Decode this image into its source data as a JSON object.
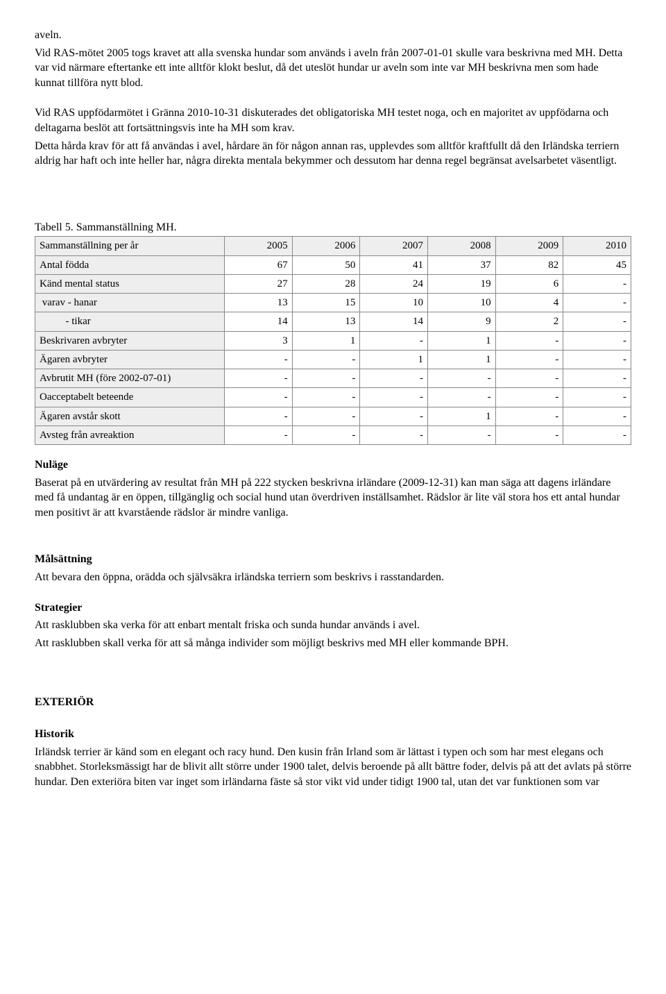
{
  "intro": {
    "p1_l1": "aveln.",
    "p1_l2": "Vid RAS-mötet 2005 togs kravet att alla svenska hundar som används i aveln från 2007-01-01 skulle vara beskrivna med MH. Detta var vid närmare eftertanke ett inte alltför klokt beslut, då det uteslöt hundar ur aveln som inte var MH beskrivna men som hade kunnat tillföra nytt blod.",
    "p2": "Vid RAS uppfödarmötet i Gränna 2010-10-31 diskuterades det obligatoriska MH testet noga, och en majoritet av uppfödarna och deltagarna beslöt att fortsättningsvis inte ha MH som krav.",
    "p3": "Detta hårda krav för att få användas i avel, hårdare än för någon annan ras, upplevdes som alltför kraftfullt då den Irländska terriern aldrig har haft och inte heller har, några direkta mentala bekymmer och dessutom har denna regel begränsat avelsarbetet väsentligt."
  },
  "table": {
    "title": "Tabell 5. Sammanställning MH.",
    "header_row_label": "Sammanställning per år",
    "years": [
      "2005",
      "2006",
      "2007",
      "2008",
      "2009",
      "2010"
    ],
    "rows": [
      {
        "label": "Antal födda",
        "cells": [
          "67",
          "50",
          "41",
          "37",
          "82",
          "45"
        ]
      },
      {
        "label": "Känd mental status",
        "cells": [
          "27",
          "28",
          "24",
          "19",
          "6",
          "-"
        ]
      },
      {
        "label": " varav - hanar",
        "cells": [
          "13",
          "15",
          "10",
          "10",
          "4",
          "-"
        ]
      },
      {
        "label": "          - tikar",
        "cells": [
          "14",
          "13",
          "14",
          "9",
          "2",
          "-"
        ]
      },
      {
        "label": "Beskrivaren avbryter",
        "cells": [
          "3",
          "1",
          "-",
          "1",
          "-",
          "-"
        ]
      },
      {
        "label": "Ägaren avbryter",
        "cells": [
          "-",
          "-",
          "1",
          "1",
          "-",
          "-"
        ]
      },
      {
        "label": "Avbrutit MH (före 2002-07-01)",
        "cells": [
          "-",
          "-",
          "-",
          "-",
          "-",
          "-"
        ]
      },
      {
        "label": "Oacceptabelt beteende",
        "cells": [
          "-",
          "-",
          "-",
          "-",
          "-",
          "-"
        ]
      },
      {
        "label": "Ägaren avstår skott",
        "cells": [
          "-",
          "-",
          "-",
          "1",
          "-",
          "-"
        ]
      },
      {
        "label": "Avsteg från avreaktion",
        "cells": [
          "-",
          "-",
          "-",
          "-",
          "-",
          "-"
        ]
      }
    ]
  },
  "nulage": {
    "head": "Nuläge",
    "body": "Baserat på en utvärdering av resultat från MH på 222 stycken beskrivna irländare (2009-12-31) kan man säga att dagens irländare med få undantag är en öppen, tillgänglig och social hund utan överdriven inställsamhet. Rädslor är lite väl stora hos ett antal hundar men positivt är att kvarstående rädslor är mindre vanliga."
  },
  "malsattning": {
    "head": "Målsättning",
    "body": "Att bevara den öppna, orädda och självsäkra irländska terriern som beskrivs i rasstandarden."
  },
  "strategier": {
    "head": "Strategier",
    "l1": "Att rasklubben ska verka för att enbart mentalt friska och sunda hundar används i avel.",
    "l2": "Att rasklubben skall verka för att så många individer som möjligt beskrivs med MH eller kommande BPH."
  },
  "exterior": {
    "title": "EXTERIÖR",
    "historik_head": "Historik",
    "historik_body": "Irländsk terrier är känd som en elegant och racy hund. Den kusin från Irland som är lättast i typen och som har mest elegans och snabbhet. Storleksmässigt har de blivit allt större under 1900 talet, delvis beroende på allt bättre foder, delvis på att det avlats på större hundar. Den exteriöra biten var inget som irländarna fäste så stor vikt vid under tidigt 1900 tal, utan det var funktionen som var"
  }
}
